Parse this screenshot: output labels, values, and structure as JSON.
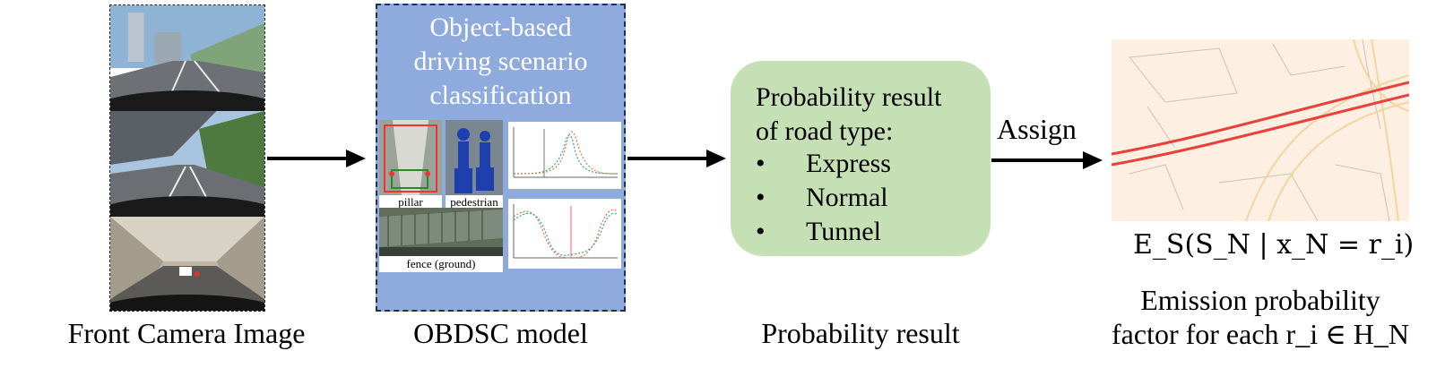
{
  "stages": {
    "camera": {
      "caption": "Front Camera Image"
    },
    "model": {
      "title_lines": [
        "Object-based",
        "driving scenario",
        "classification"
      ],
      "labels": {
        "pillar": "pillar",
        "pedestrian": "pedestrian",
        "fence": "fence (ground)"
      },
      "caption": "OBDSC model"
    },
    "probability": {
      "heading_lines": [
        "Probability result",
        "of road type:"
      ],
      "items": [
        "Express",
        "Normal",
        "Tunnel"
      ],
      "bullet": "•",
      "caption": "Probability result"
    },
    "assign": {
      "label": "Assign"
    },
    "emission": {
      "formula": "E_S(S_N | x_N = r_i)",
      "caption_lines": [
        "Emission probability",
        "factor for each r_i ∈ H_N"
      ]
    }
  },
  "colors": {
    "model_box": "#8faadc",
    "prob_box": "#c5e0b4",
    "map_bg": "#fdf0e3",
    "road_red": "#e8403a",
    "arrow": "#000000"
  }
}
